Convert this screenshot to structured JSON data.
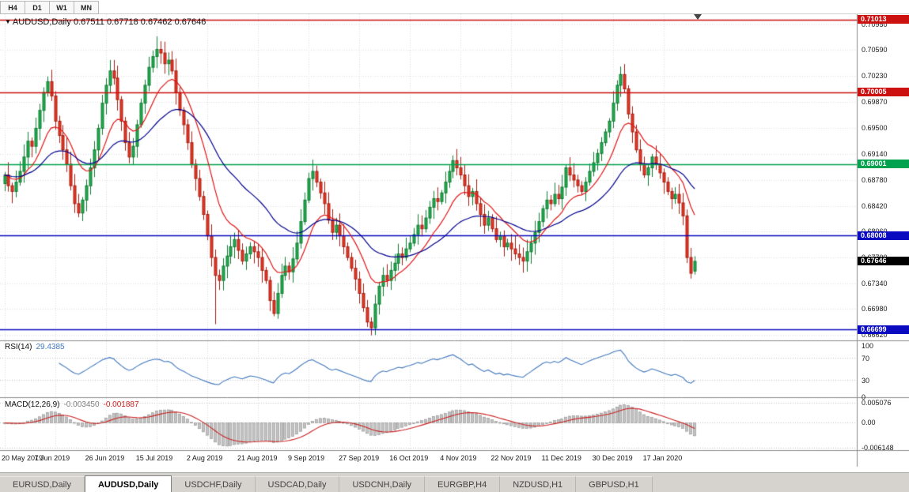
{
  "toolbar": {
    "periods": [
      {
        "label": "H4"
      },
      {
        "label": "D1"
      },
      {
        "label": "W1"
      },
      {
        "label": "MN"
      }
    ]
  },
  "chart": {
    "header": {
      "symbol": "AUDUSD,Daily",
      "ohlc_text": "0.67511 0.67718 0.67462 0.67646"
    }
  },
  "chart_data": {
    "type": "candlestick",
    "symbol": "AUDUSD",
    "timeframe": "Daily",
    "last_ohlc": {
      "open": 0.67511,
      "high": 0.67718,
      "low": 0.67462,
      "close": 0.67646
    },
    "x_labels": [
      "20 May 2019",
      "7 Jun 2019",
      "26 Jun 2019",
      "15 Jul 2019",
      "2 Aug 2019",
      "21 Aug 2019",
      "9 Sep 2019",
      "27 Sep 2019",
      "16 Oct 2019",
      "4 Nov 2019",
      "22 Nov 2019",
      "11 Dec 2019",
      "30 Dec 2019",
      "17 Jan 2020"
    ],
    "label_interval": 13,
    "closes": [
      0.6885,
      0.687,
      0.6862,
      0.6875,
      0.689,
      0.691,
      0.6932,
      0.6925,
      0.695,
      0.6975,
      0.7,
      0.7015,
      0.6995,
      0.696,
      0.694,
      0.692,
      0.69,
      0.687,
      0.6845,
      0.6832,
      0.685,
      0.687,
      0.6895,
      0.692,
      0.695,
      0.6985,
      0.701,
      0.703,
      0.702,
      0.699,
      0.696,
      0.693,
      0.691,
      0.6925,
      0.6955,
      0.6985,
      0.701,
      0.7035,
      0.705,
      0.706,
      0.7055,
      0.704,
      0.7045,
      0.703,
      0.7,
      0.6975,
      0.6955,
      0.693,
      0.69,
      0.688,
      0.6855,
      0.683,
      0.68,
      0.677,
      0.6745,
      0.6738,
      0.6758,
      0.6772,
      0.6785,
      0.6795,
      0.678,
      0.6765,
      0.6775,
      0.6785,
      0.6778,
      0.677,
      0.6752,
      0.6738,
      0.671,
      0.6692,
      0.672,
      0.6745,
      0.6758,
      0.675,
      0.6768,
      0.679,
      0.682,
      0.685,
      0.688,
      0.689,
      0.6875,
      0.686,
      0.6845,
      0.6822,
      0.6805,
      0.6815,
      0.68,
      0.6785,
      0.677,
      0.6755,
      0.674,
      0.672,
      0.67,
      0.668,
      0.6672,
      0.6705,
      0.673,
      0.6745,
      0.6738,
      0.6752,
      0.6762,
      0.6775,
      0.677,
      0.6782,
      0.679,
      0.6802,
      0.6815,
      0.681,
      0.6825,
      0.684,
      0.6852,
      0.6848,
      0.686,
      0.6875,
      0.689,
      0.6905,
      0.6895,
      0.6885,
      0.687,
      0.6855,
      0.6862,
      0.6845,
      0.683,
      0.6815,
      0.6825,
      0.681,
      0.6795,
      0.68,
      0.6785,
      0.679,
      0.6782,
      0.6775,
      0.677,
      0.6765,
      0.6778,
      0.679,
      0.6805,
      0.682,
      0.6838,
      0.685,
      0.6845,
      0.6858,
      0.6852,
      0.6868,
      0.6895,
      0.6885,
      0.6878,
      0.687,
      0.6862,
      0.6875,
      0.689,
      0.6902,
      0.6915,
      0.693,
      0.6945,
      0.696,
      0.6985,
      0.701,
      0.7025,
      0.7005,
      0.697,
      0.6945,
      0.692,
      0.69,
      0.6885,
      0.6895,
      0.691,
      0.69,
      0.6888,
      0.6875,
      0.6862,
      0.6852,
      0.6858,
      0.6846,
      0.6828,
      0.677,
      0.6748,
      0.67646
    ],
    "wick_low_overrides": {
      "54": 0.6677,
      "69": 0.6688,
      "94": 0.66615
    },
    "wick_high_overrides": {
      "39": 0.7078,
      "158": 0.7036
    },
    "price_axis": {
      "ticks": [
        "0.70950",
        "0.70590",
        "0.70230",
        "0.69870",
        "0.69500",
        "0.69140",
        "0.68780",
        "0.68420",
        "0.68060",
        "0.67700",
        "0.67340",
        "0.66980",
        "0.66620"
      ],
      "range": [
        0.66545,
        0.7109
      ]
    },
    "levels": [
      {
        "value": 0.71013,
        "label": "0.71013",
        "color": "#cc1111"
      },
      {
        "value": 0.70005,
        "label": "0.70005",
        "color": "#cc1111"
      },
      {
        "value": 0.69001,
        "label": "0.69001",
        "color": "#00a24d"
      },
      {
        "value": 0.68008,
        "label": "0.68008",
        "color": "#0a0ac0"
      },
      {
        "value": 0.66699,
        "label": "0.66699",
        "color": "#0a0ac0"
      }
    ],
    "current_price": {
      "value": 0.67646,
      "label": "0.67646",
      "color": "#000000"
    },
    "moving_averages": [
      {
        "type": "ema",
        "period": 12,
        "color": "#e01616"
      },
      {
        "type": "ema",
        "period": 34,
        "color": "#00008b"
      }
    ],
    "indicators": {
      "rsi": {
        "label": "RSI(14)",
        "value_label": "29.4385",
        "period": 14,
        "levels": [
          70,
          30
        ],
        "axis": [
          "100",
          "70",
          "30",
          "0"
        ],
        "color": "#4178be"
      },
      "macd": {
        "label": "MACD(12,26,9)",
        "main_value": "-0.003450",
        "signal_value": "-0.001887",
        "fast": 12,
        "slow": 26,
        "signal": 9,
        "axis": [
          "0.005076",
          "0.00",
          "-0.006148"
        ],
        "range": [
          -0.0068,
          0.0062
        ],
        "hist_color": "#c3c3c3",
        "hist_border": "#8c8c8c",
        "signal_color": "#cc2020"
      }
    },
    "colors": {
      "up_fill": "#1fae4e",
      "up_stroke": "#117a33",
      "down_fill": "#ea3423",
      "down_stroke": "#a32014",
      "grid": "#dcdcdc",
      "panel_border": "#8c8c8c"
    }
  },
  "bottom_tabs": [
    {
      "label": "EURUSD,Daily",
      "active": false
    },
    {
      "label": "AUDUSD,Daily",
      "active": true
    },
    {
      "label": "USDCHF,Daily",
      "active": false
    },
    {
      "label": "USDCAD,Daily",
      "active": false
    },
    {
      "label": "USDCNH,Daily",
      "active": false
    },
    {
      "label": "EURGBP,H4",
      "active": false
    },
    {
      "label": "NZDUSD,H1",
      "active": false
    },
    {
      "label": "GBPUSD,H1",
      "active": false
    }
  ]
}
